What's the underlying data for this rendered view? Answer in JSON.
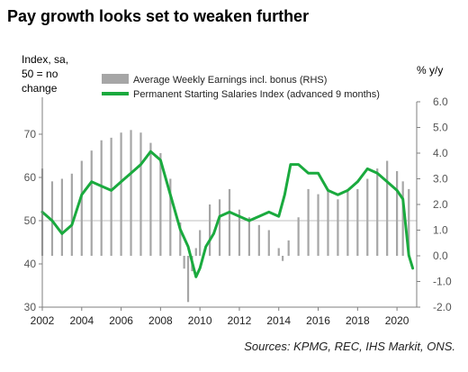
{
  "chart_data": {
    "type": "line",
    "title": "Pay growth looks set to weaken further",
    "source": "Sources: KPMG, REC, IHS Markit, ONS.",
    "ylabel_left": "Index, sa,\n50 = no\nchange",
    "ylabel_right": "% y/y",
    "xlim": [
      2002,
      2021
    ],
    "x_ticks": [
      2002,
      2004,
      2006,
      2008,
      2010,
      2012,
      2014,
      2016,
      2018,
      2020
    ],
    "x_tick_labels": [
      "2002",
      "2004",
      "2006",
      "2008",
      "2010",
      "2012",
      "2014",
      "2016",
      "2018",
      "2020"
    ],
    "y_left_lim": [
      30,
      80
    ],
    "y_left_ticks": [
      30,
      40,
      50,
      60,
      70
    ],
    "y_right_lim": [
      -2,
      6
    ],
    "y_right_ticks": [
      -2,
      -1,
      0,
      1,
      2,
      3,
      4,
      5,
      6
    ],
    "y_right_tick_labels": [
      "-2.0",
      "-1.0",
      "0.0",
      "1.0",
      "2.0",
      "3.0",
      "4.0",
      "5.0",
      "6.0"
    ],
    "series": [
      {
        "name": "Average Weekly Earnings incl. bonus (RHS)",
        "axis": "right",
        "type": "bar",
        "color": "#a6a6a6",
        "x": [
          2002.0,
          2002.5,
          2003.0,
          2003.5,
          2004.0,
          2004.5,
          2005.0,
          2005.5,
          2006.0,
          2006.5,
          2007.0,
          2007.5,
          2008.0,
          2008.5,
          2009.0,
          2009.2,
          2009.4,
          2009.6,
          2009.8,
          2010.0,
          2010.5,
          2011.0,
          2011.5,
          2012.0,
          2012.5,
          2013.0,
          2013.5,
          2014.0,
          2014.2,
          2014.5,
          2015.0,
          2015.5,
          2016.0,
          2016.5,
          2017.0,
          2017.5,
          2018.0,
          2018.5,
          2019.0,
          2019.5,
          2020.0,
          2020.3,
          2020.6
        ],
        "values": [
          3.4,
          2.9,
          3.0,
          3.2,
          3.7,
          4.1,
          4.5,
          4.6,
          4.8,
          4.9,
          4.8,
          4.4,
          4.0,
          3.0,
          1.3,
          -0.5,
          -1.8,
          -0.6,
          0.3,
          1.0,
          2.0,
          2.2,
          2.6,
          1.8,
          1.5,
          1.2,
          1.0,
          0.3,
          -0.2,
          0.6,
          1.5,
          2.6,
          2.4,
          2.6,
          2.2,
          2.5,
          2.6,
          3.0,
          3.4,
          3.7,
          3.3,
          2.9,
          2.6
        ]
      },
      {
        "name": "Permanent Starting Salaries Index (advanced 9 months)",
        "axis": "left",
        "type": "line",
        "color": "#1aaa3e",
        "x": [
          2002.0,
          2002.5,
          2003.0,
          2003.5,
          2004.0,
          2004.5,
          2005.0,
          2005.5,
          2006.0,
          2006.5,
          2007.0,
          2007.5,
          2008.0,
          2008.5,
          2009.0,
          2009.4,
          2009.8,
          2010.0,
          2010.3,
          2010.7,
          2011.0,
          2011.5,
          2012.0,
          2012.5,
          2013.0,
          2013.5,
          2014.0,
          2014.3,
          2014.6,
          2015.0,
          2015.5,
          2016.0,
          2016.5,
          2017.0,
          2017.5,
          2018.0,
          2018.5,
          2019.0,
          2019.5,
          2020.0,
          2020.3,
          2020.6,
          2020.8
        ],
        "values": [
          52,
          50,
          47,
          49,
          56,
          59,
          58,
          57,
          59,
          61,
          63,
          66,
          64,
          56,
          48,
          44,
          37,
          39,
          44,
          47,
          51,
          52,
          51,
          50,
          51,
          52,
          51,
          56,
          63,
          63,
          61,
          61,
          57,
          56,
          57,
          59,
          62,
          61,
          59,
          57,
          55,
          42,
          39
        ]
      }
    ]
  }
}
